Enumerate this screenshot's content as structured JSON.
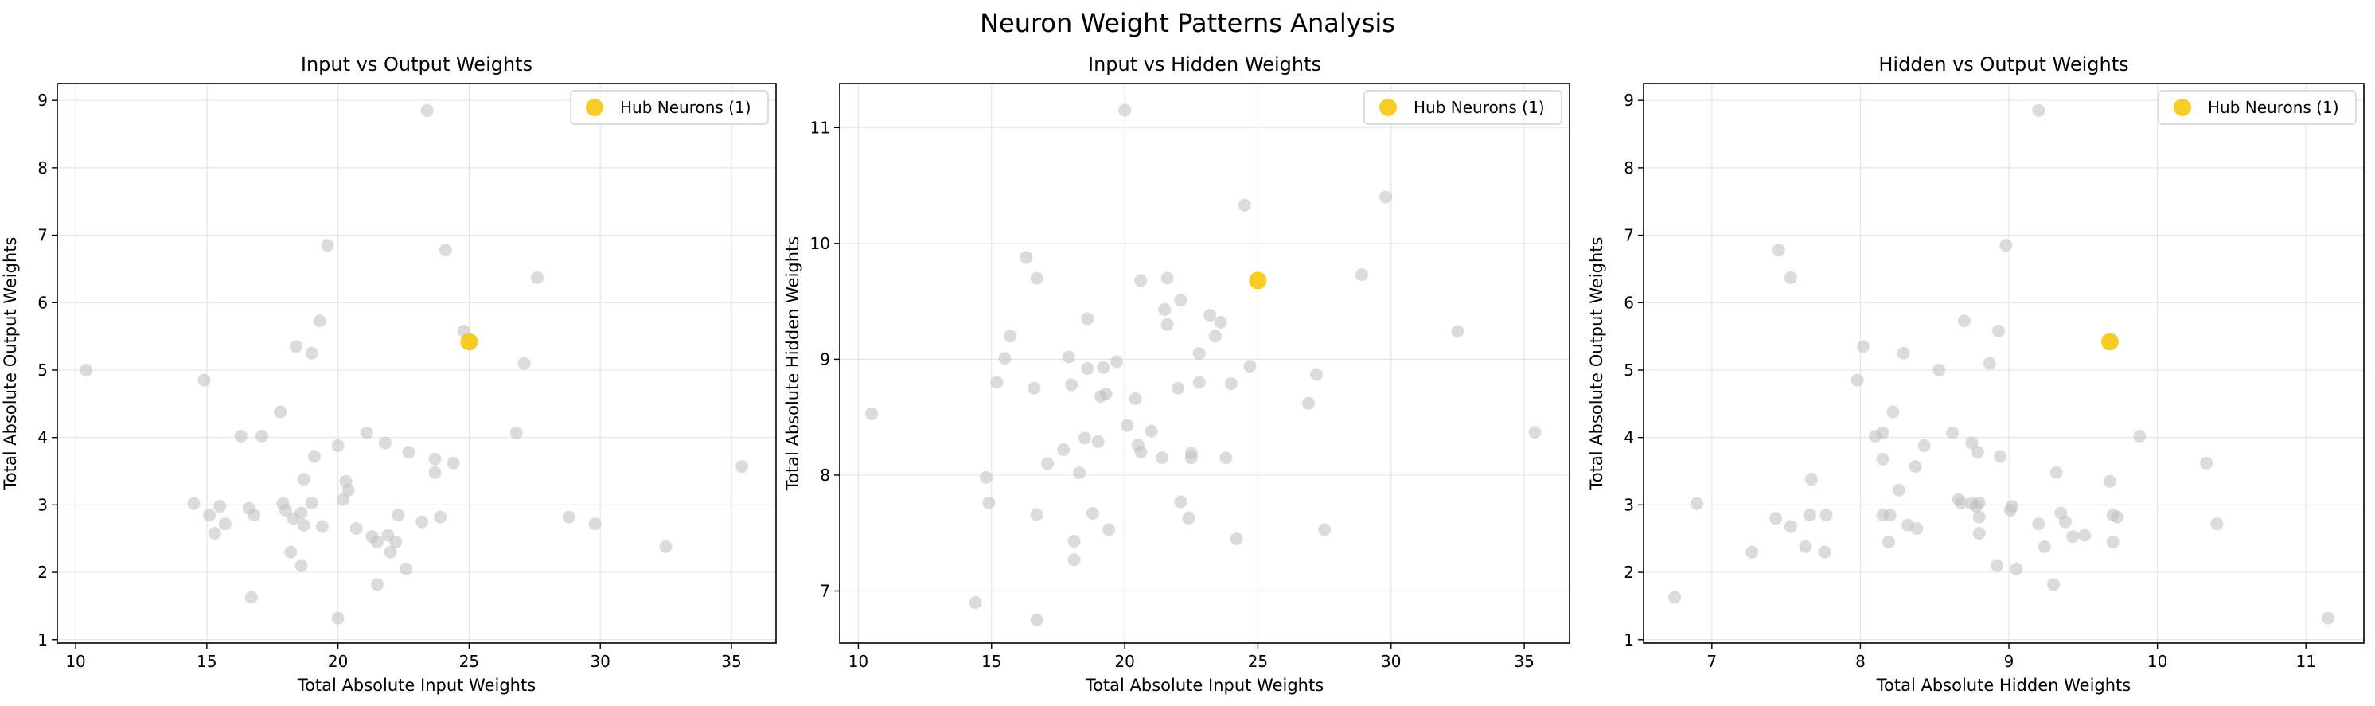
{
  "figure": {
    "title": "Neuron Weight Patterns Analysis"
  },
  "colors": {
    "background_point": "#bdbdbd",
    "hub_point": "#f5c400",
    "grid": "#e6e6e6",
    "axis": "#000000"
  },
  "chart_data": [
    {
      "type": "scatter",
      "title": "Input vs Output Weights",
      "xlabel": "Total Absolute Input Weights",
      "ylabel": "Total Absolute Output Weights",
      "xlim": [
        9.3,
        36.7
      ],
      "ylim": [
        0.95,
        9.25
      ],
      "xticks": [
        10,
        15,
        20,
        25,
        30,
        35
      ],
      "yticks": [
        1,
        2,
        3,
        4,
        5,
        6,
        7,
        8,
        9
      ],
      "grid": true,
      "legend": {
        "placement": "top-right",
        "label": "Hub Neurons (1)"
      },
      "series": [
        {
          "name": "",
          "role": "background",
          "points": [
            [
              10.4,
              5.0
            ],
            [
              14.5,
              3.02
            ],
            [
              14.9,
              4.85
            ],
            [
              15.1,
              2.85
            ],
            [
              15.3,
              2.58
            ],
            [
              15.5,
              2.98
            ],
            [
              15.7,
              2.72
            ],
            [
              16.3,
              4.02
            ],
            [
              16.6,
              2.95
            ],
            [
              16.7,
              1.63
            ],
            [
              16.8,
              2.85
            ],
            [
              17.1,
              4.02
            ],
            [
              17.8,
              4.38
            ],
            [
              17.9,
              3.02
            ],
            [
              18.0,
              2.92
            ],
            [
              18.2,
              2.3
            ],
            [
              18.3,
              2.8
            ],
            [
              18.4,
              5.35
            ],
            [
              18.6,
              2.88
            ],
            [
              18.6,
              2.1
            ],
            [
              18.7,
              3.38
            ],
            [
              18.7,
              2.7
            ],
            [
              19.0,
              3.03
            ],
            [
              19.0,
              5.25
            ],
            [
              19.1,
              3.72
            ],
            [
              19.3,
              5.73
            ],
            [
              19.4,
              2.68
            ],
            [
              19.6,
              6.85
            ],
            [
              20.0,
              3.88
            ],
            [
              20.0,
              1.32
            ],
            [
              20.2,
              3.08
            ],
            [
              20.3,
              3.35
            ],
            [
              20.4,
              3.22
            ],
            [
              20.7,
              2.65
            ],
            [
              21.1,
              4.07
            ],
            [
              21.3,
              2.53
            ],
            [
              21.5,
              1.82
            ],
            [
              21.5,
              2.45
            ],
            [
              21.8,
              3.92
            ],
            [
              21.9,
              2.55
            ],
            [
              22.0,
              2.3
            ],
            [
              22.2,
              2.45
            ],
            [
              22.3,
              2.85
            ],
            [
              22.6,
              2.05
            ],
            [
              22.7,
              3.78
            ],
            [
              23.2,
              2.75
            ],
            [
              23.4,
              8.85
            ],
            [
              23.7,
              3.48
            ],
            [
              23.7,
              3.68
            ],
            [
              23.9,
              2.82
            ],
            [
              24.1,
              6.78
            ],
            [
              24.4,
              3.62
            ],
            [
              24.8,
              5.58
            ],
            [
              26.8,
              4.07
            ],
            [
              27.1,
              5.1
            ],
            [
              27.6,
              6.37
            ],
            [
              28.8,
              2.82
            ],
            [
              29.8,
              2.72
            ],
            [
              32.5,
              2.38
            ],
            [
              35.4,
              3.57
            ]
          ]
        },
        {
          "name": "Hub Neurons (1)",
          "role": "hub",
          "points": [
            [
              25.0,
              5.42
            ]
          ]
        }
      ]
    },
    {
      "type": "scatter",
      "title": "Input vs Hidden Weights",
      "xlabel": "Total Absolute Input Weights",
      "ylabel": "Total Absolute Hidden Weights",
      "xlim": [
        9.3,
        36.7
      ],
      "ylim": [
        6.55,
        11.38
      ],
      "xticks": [
        10,
        15,
        20,
        25,
        30,
        35
      ],
      "yticks": [
        7,
        8,
        9,
        10,
        11
      ],
      "grid": true,
      "legend": {
        "placement": "top-right",
        "label": "Hub Neurons (1)"
      },
      "series": [
        {
          "name": "",
          "role": "background",
          "points": [
            [
              10.5,
              8.53
            ],
            [
              14.4,
              6.9
            ],
            [
              14.8,
              7.98
            ],
            [
              14.9,
              7.76
            ],
            [
              15.2,
              8.8
            ],
            [
              15.5,
              9.01
            ],
            [
              15.7,
              9.2
            ],
            [
              16.3,
              9.88
            ],
            [
              16.6,
              8.75
            ],
            [
              16.7,
              9.7
            ],
            [
              16.7,
              7.66
            ],
            [
              16.7,
              6.75
            ],
            [
              17.1,
              8.1
            ],
            [
              17.7,
              8.22
            ],
            [
              17.9,
              9.02
            ],
            [
              18.0,
              8.78
            ],
            [
              18.1,
              7.43
            ],
            [
              18.1,
              7.27
            ],
            [
              18.3,
              8.02
            ],
            [
              18.5,
              8.32
            ],
            [
              18.6,
              9.35
            ],
            [
              18.6,
              8.92
            ],
            [
              18.8,
              7.67
            ],
            [
              19.0,
              8.29
            ],
            [
              19.1,
              8.68
            ],
            [
              19.2,
              8.93
            ],
            [
              19.3,
              8.7
            ],
            [
              19.4,
              7.53
            ],
            [
              19.7,
              8.98
            ],
            [
              20.0,
              11.15
            ],
            [
              20.1,
              8.43
            ],
            [
              20.4,
              8.66
            ],
            [
              20.5,
              8.26
            ],
            [
              20.6,
              9.68
            ],
            [
              20.6,
              8.2
            ],
            [
              21.0,
              8.38
            ],
            [
              21.4,
              8.15
            ],
            [
              21.5,
              9.43
            ],
            [
              21.6,
              9.7
            ],
            [
              21.6,
              9.3
            ],
            [
              22.0,
              8.75
            ],
            [
              22.1,
              9.51
            ],
            [
              22.1,
              7.77
            ],
            [
              22.4,
              7.63
            ],
            [
              22.5,
              8.19
            ],
            [
              22.5,
              8.15
            ],
            [
              22.8,
              9.05
            ],
            [
              22.8,
              8.8
            ],
            [
              23.2,
              9.38
            ],
            [
              23.4,
              9.2
            ],
            [
              23.6,
              9.32
            ],
            [
              23.8,
              8.15
            ],
            [
              24.0,
              8.79
            ],
            [
              24.2,
              7.45
            ],
            [
              24.5,
              10.33
            ],
            [
              24.7,
              8.94
            ],
            [
              26.9,
              8.62
            ],
            [
              27.2,
              8.87
            ],
            [
              27.5,
              7.53
            ],
            [
              28.9,
              9.73
            ],
            [
              29.8,
              10.4
            ],
            [
              32.5,
              9.24
            ],
            [
              35.4,
              8.37
            ]
          ]
        },
        {
          "name": "Hub Neurons (1)",
          "role": "hub",
          "points": [
            [
              25.0,
              9.68
            ]
          ]
        }
      ]
    },
    {
      "type": "scatter",
      "title": "Hidden vs Output Weights",
      "xlabel": "Total Absolute Hidden Weights",
      "ylabel": "Total Absolute Output Weights",
      "xlim": [
        6.54,
        11.39
      ],
      "ylim": [
        0.95,
        9.25
      ],
      "xticks": [
        7,
        8,
        9,
        10,
        11
      ],
      "yticks": [
        1,
        2,
        3,
        4,
        5,
        6,
        7,
        8,
        9
      ],
      "grid": true,
      "legend": {
        "placement": "top-right",
        "label": "Hub Neurons (1)"
      },
      "series": [
        {
          "name": "",
          "role": "background",
          "points": [
            [
              6.75,
              1.63
            ],
            [
              6.9,
              3.02
            ],
            [
              7.27,
              2.3
            ],
            [
              7.43,
              2.8
            ],
            [
              7.45,
              6.78
            ],
            [
              7.53,
              6.37
            ],
            [
              7.53,
              2.68
            ],
            [
              7.63,
              2.38
            ],
            [
              7.66,
              2.85
            ],
            [
              7.67,
              3.38
            ],
            [
              7.76,
              2.3
            ],
            [
              7.77,
              2.85
            ],
            [
              7.98,
              4.85
            ],
            [
              8.02,
              5.35
            ],
            [
              8.1,
              4.02
            ],
            [
              8.15,
              3.68
            ],
            [
              8.15,
              2.85
            ],
            [
              8.15,
              4.07
            ],
            [
              8.19,
              2.45
            ],
            [
              8.2,
              2.85
            ],
            [
              8.22,
              4.38
            ],
            [
              8.26,
              3.22
            ],
            [
              8.29,
              5.25
            ],
            [
              8.32,
              2.7
            ],
            [
              8.37,
              3.57
            ],
            [
              8.38,
              2.65
            ],
            [
              8.43,
              3.88
            ],
            [
              8.53,
              5.0
            ],
            [
              8.62,
              4.07
            ],
            [
              8.66,
              3.08
            ],
            [
              8.68,
              3.03
            ],
            [
              8.7,
              5.73
            ],
            [
              8.75,
              3.92
            ],
            [
              8.75,
              3.02
            ],
            [
              8.78,
              2.98
            ],
            [
              8.79,
              3.78
            ],
            [
              8.8,
              2.82
            ],
            [
              8.8,
              2.58
            ],
            [
              8.8,
              3.03
            ],
            [
              8.87,
              5.1
            ],
            [
              8.92,
              2.1
            ],
            [
              8.93,
              5.58
            ],
            [
              8.94,
              3.72
            ],
            [
              8.98,
              6.85
            ],
            [
              9.01,
              2.92
            ],
            [
              9.02,
              2.98
            ],
            [
              9.05,
              2.05
            ],
            [
              9.2,
              8.85
            ],
            [
              9.2,
              2.72
            ],
            [
              9.24,
              2.38
            ],
            [
              9.3,
              1.82
            ],
            [
              9.32,
              3.48
            ],
            [
              9.35,
              2.88
            ],
            [
              9.38,
              2.75
            ],
            [
              9.43,
              2.53
            ],
            [
              9.51,
              2.55
            ],
            [
              9.68,
              3.35
            ],
            [
              9.7,
              2.85
            ],
            [
              9.7,
              2.45
            ],
            [
              9.73,
              2.82
            ],
            [
              9.88,
              4.02
            ],
            [
              10.33,
              3.62
            ],
            [
              10.4,
              2.72
            ],
            [
              11.15,
              1.32
            ]
          ]
        },
        {
          "name": "Hub Neurons (1)",
          "role": "hub",
          "points": [
            [
              9.68,
              5.42
            ]
          ]
        }
      ]
    }
  ]
}
